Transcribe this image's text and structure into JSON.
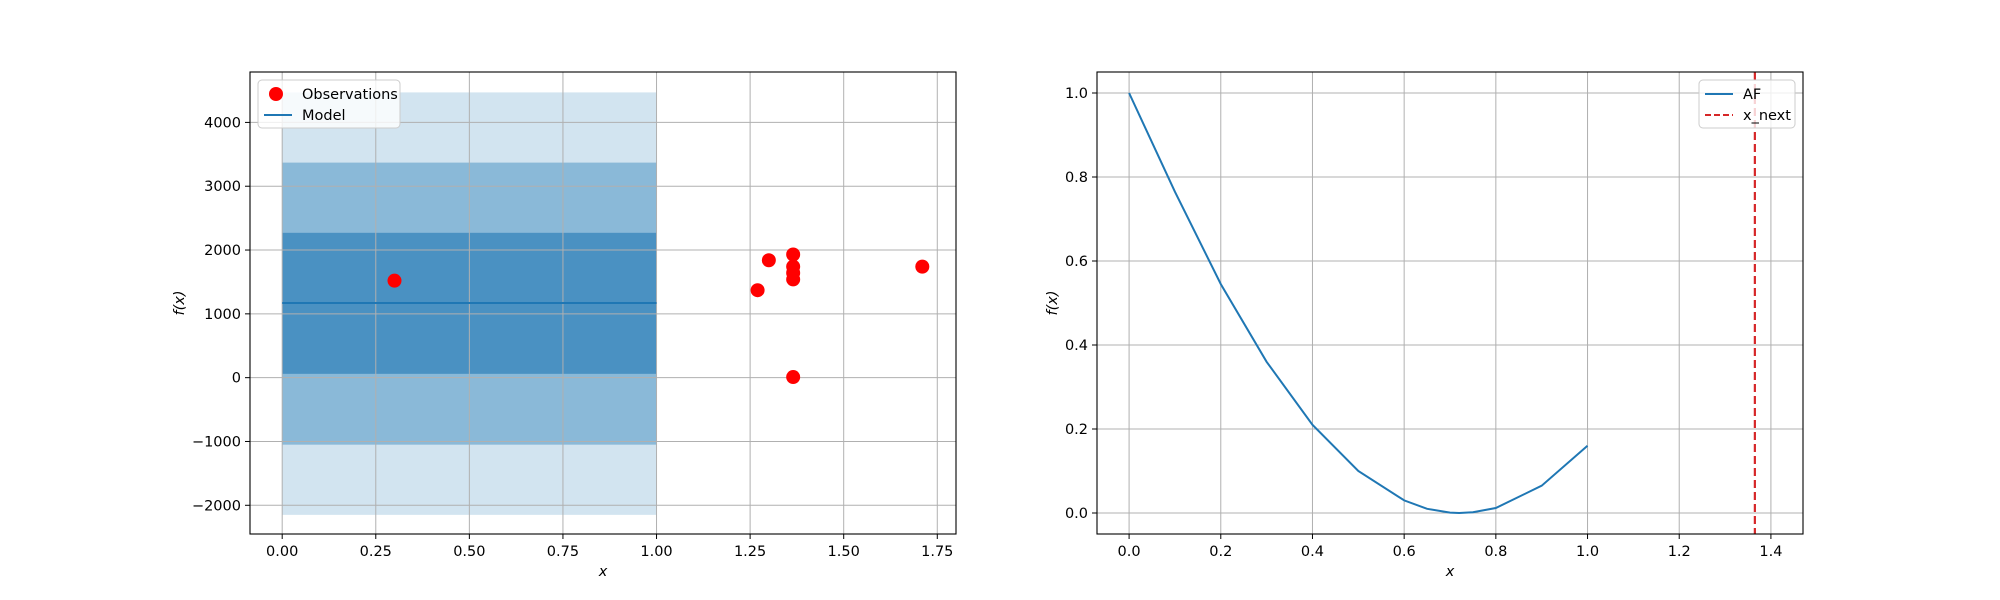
{
  "chart_data": [
    {
      "type": "scatter",
      "xlabel": "x",
      "ylabel": "f(x)",
      "xlim": [
        -0.086,
        1.8
      ],
      "ylim": [
        -2450,
        4790
      ],
      "xticks": [
        0.0,
        0.25,
        0.5,
        0.75,
        1.0,
        1.25,
        1.5,
        1.75
      ],
      "xtick_labels": [
        "0.00",
        "0.25",
        "0.50",
        "0.75",
        "1.00",
        "1.25",
        "1.50",
        "1.75"
      ],
      "yticks": [
        -2000,
        -1000,
        0,
        1000,
        2000,
        3000,
        4000
      ],
      "ytick_labels": [
        "−2000",
        "−1000",
        "0",
        "1000",
        "2000",
        "3000",
        "4000"
      ],
      "grid": true,
      "legend": {
        "position": "top-left",
        "entries": [
          "Observations",
          "Model"
        ]
      },
      "series": [
        {
          "name": "Observations",
          "kind": "scatter",
          "color": "#ff0000",
          "x": [
            0.3,
            1.27,
            1.3,
            1.365,
            1.365,
            1.365,
            1.365,
            1.365,
            1.71
          ],
          "y": [
            1520,
            1370,
            1840,
            1930,
            1740,
            1640,
            1540,
            10,
            1740
          ]
        },
        {
          "name": "Model",
          "kind": "line",
          "color": "#1f77b4",
          "x": [
            0.0,
            1.0
          ],
          "y": [
            1170,
            1170
          ]
        }
      ],
      "bands": [
        {
          "x": [
            0.0,
            1.0
          ],
          "lower": -2150,
          "upper": 4470,
          "color": "#1f77b4",
          "opacity": 0.2
        },
        {
          "x": [
            0.0,
            1.0
          ],
          "lower": -1050,
          "upper": 3370,
          "color": "#1f77b4",
          "opacity": 0.4
        },
        {
          "x": [
            0.0,
            1.0
          ],
          "lower": 60,
          "upper": 2270,
          "color": "#1f77b4",
          "opacity": 0.6
        }
      ]
    },
    {
      "type": "line",
      "xlabel": "x",
      "ylabel": "f(x)",
      "xlim": [
        -0.07,
        1.47
      ],
      "ylim": [
        -0.05,
        1.05
      ],
      "xticks": [
        0.0,
        0.2,
        0.4,
        0.6,
        0.8,
        1.0,
        1.2,
        1.4
      ],
      "xtick_labels": [
        "0.0",
        "0.2",
        "0.4",
        "0.6",
        "0.8",
        "1.0",
        "1.2",
        "1.4"
      ],
      "yticks": [
        0.0,
        0.2,
        0.4,
        0.6,
        0.8,
        1.0
      ],
      "ytick_labels": [
        "0.0",
        "0.2",
        "0.4",
        "0.6",
        "0.8",
        "1.0"
      ],
      "grid": true,
      "legend": {
        "position": "top-right",
        "entries": [
          "AF",
          "x_next"
        ]
      },
      "series": [
        {
          "name": "AF",
          "kind": "line",
          "color": "#1f77b4",
          "x": [
            0.0,
            0.1,
            0.2,
            0.3,
            0.4,
            0.5,
            0.6,
            0.65,
            0.7,
            0.72,
            0.75,
            0.8,
            0.9,
            1.0
          ],
          "y": [
            1.0,
            0.765,
            0.545,
            0.36,
            0.21,
            0.1,
            0.03,
            0.01,
            0.001,
            0.0,
            0.002,
            0.012,
            0.065,
            0.16
          ]
        },
        {
          "name": "x_next",
          "kind": "vline",
          "color": "#d62728",
          "dashed": true,
          "x": 1.365
        }
      ]
    }
  ]
}
